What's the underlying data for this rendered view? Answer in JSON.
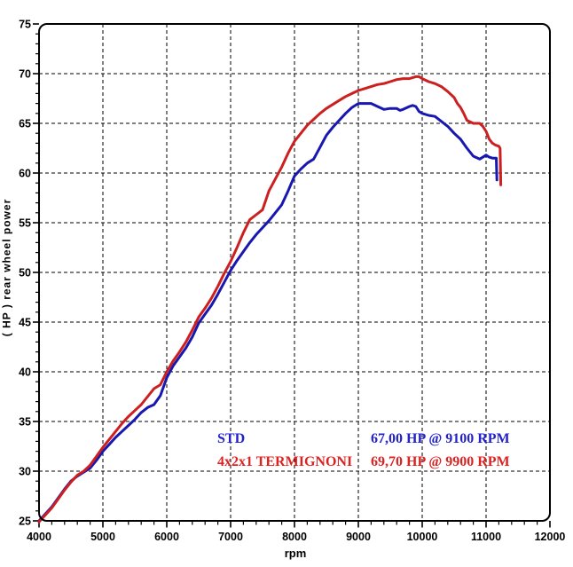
{
  "chart_data": {
    "type": "line",
    "title": "",
    "xlabel": "rpm",
    "ylabel": "( HP )  rear wheel power",
    "grid": "on",
    "x_axis": {
      "min": 4000,
      "max": 12000,
      "major_step": 1000,
      "minor_step": 200,
      "tick_labels": [
        "4000",
        "5000",
        "6000",
        "7000",
        "8000",
        "9000",
        "10000",
        "11000",
        "12000"
      ]
    },
    "y_axis": {
      "min": 25,
      "max": 75,
      "major_step": 5,
      "minor_step": 1,
      "tick_labels": [
        "25",
        "30",
        "35",
        "40",
        "45",
        "50",
        "55",
        "60",
        "65",
        "70",
        "75"
      ]
    },
    "series": [
      {
        "name": "STD",
        "color": "#1818b0",
        "peak": "67,00 HP @ 9100 RPM",
        "points": [
          [
            4000,
            25.0
          ],
          [
            4100,
            25.7
          ],
          [
            4200,
            26.4
          ],
          [
            4300,
            27.3
          ],
          [
            4400,
            28.2
          ],
          [
            4500,
            29.0
          ],
          [
            4600,
            29.5
          ],
          [
            4700,
            29.9
          ],
          [
            4800,
            30.3
          ],
          [
            4900,
            31.1
          ],
          [
            5000,
            32.0
          ],
          [
            5100,
            32.7
          ],
          [
            5200,
            33.4
          ],
          [
            5300,
            34.0
          ],
          [
            5400,
            34.6
          ],
          [
            5500,
            35.2
          ],
          [
            5600,
            35.9
          ],
          [
            5700,
            36.4
          ],
          [
            5800,
            36.7
          ],
          [
            5900,
            37.6
          ],
          [
            6000,
            39.4
          ],
          [
            6100,
            40.6
          ],
          [
            6200,
            41.5
          ],
          [
            6300,
            42.4
          ],
          [
            6400,
            43.5
          ],
          [
            6500,
            44.9
          ],
          [
            6600,
            45.8
          ],
          [
            6700,
            46.7
          ],
          [
            6800,
            47.8
          ],
          [
            6900,
            49.0
          ],
          [
            7000,
            50.2
          ],
          [
            7100,
            51.2
          ],
          [
            7200,
            52.1
          ],
          [
            7300,
            53.0
          ],
          [
            7400,
            53.8
          ],
          [
            7500,
            54.5
          ],
          [
            7600,
            55.2
          ],
          [
            7700,
            56.0
          ],
          [
            7800,
            56.8
          ],
          [
            7900,
            58.2
          ],
          [
            8000,
            59.7
          ],
          [
            8100,
            60.4
          ],
          [
            8200,
            61.0
          ],
          [
            8300,
            61.4
          ],
          [
            8400,
            62.6
          ],
          [
            8500,
            63.8
          ],
          [
            8600,
            64.6
          ],
          [
            8700,
            65.3
          ],
          [
            8800,
            66.0
          ],
          [
            8900,
            66.6
          ],
          [
            9000,
            67.0
          ],
          [
            9100,
            67.0
          ],
          [
            9200,
            67.0
          ],
          [
            9300,
            66.7
          ],
          [
            9400,
            66.4
          ],
          [
            9500,
            66.5
          ],
          [
            9600,
            66.5
          ],
          [
            9650,
            66.3
          ],
          [
            9700,
            66.4
          ],
          [
            9800,
            66.7
          ],
          [
            9850,
            66.8
          ],
          [
            9900,
            66.7
          ],
          [
            9950,
            66.2
          ],
          [
            10000,
            66.0
          ],
          [
            10100,
            65.8
          ],
          [
            10200,
            65.7
          ],
          [
            10300,
            65.2
          ],
          [
            10400,
            64.7
          ],
          [
            10500,
            64.0
          ],
          [
            10600,
            63.4
          ],
          [
            10700,
            62.5
          ],
          [
            10800,
            61.7
          ],
          [
            10900,
            61.4
          ],
          [
            11000,
            61.8
          ],
          [
            11050,
            61.6
          ],
          [
            11100,
            61.5
          ],
          [
            11160,
            61.5
          ],
          [
            11170,
            59.3
          ]
        ]
      },
      {
        "name": "4x2x1 TERMIGNONI",
        "color": "#cc2020",
        "peak": "69,70 HP @ 9900 RPM",
        "points": [
          [
            4000,
            24.9
          ],
          [
            4100,
            25.6
          ],
          [
            4200,
            26.3
          ],
          [
            4300,
            27.2
          ],
          [
            4400,
            28.1
          ],
          [
            4500,
            28.9
          ],
          [
            4600,
            29.6
          ],
          [
            4700,
            30.0
          ],
          [
            4800,
            30.6
          ],
          [
            4900,
            31.5
          ],
          [
            5000,
            32.4
          ],
          [
            5100,
            33.2
          ],
          [
            5200,
            34.0
          ],
          [
            5300,
            34.8
          ],
          [
            5400,
            35.5
          ],
          [
            5500,
            36.1
          ],
          [
            5600,
            36.7
          ],
          [
            5700,
            37.5
          ],
          [
            5800,
            38.3
          ],
          [
            5900,
            38.7
          ],
          [
            6000,
            40.0
          ],
          [
            6100,
            41.1
          ],
          [
            6200,
            42.0
          ],
          [
            6300,
            43.0
          ],
          [
            6400,
            44.2
          ],
          [
            6500,
            45.5
          ],
          [
            6600,
            46.4
          ],
          [
            6700,
            47.4
          ],
          [
            6800,
            48.6
          ],
          [
            6900,
            49.9
          ],
          [
            7000,
            51.1
          ],
          [
            7100,
            52.5
          ],
          [
            7200,
            54.0
          ],
          [
            7300,
            55.3
          ],
          [
            7400,
            55.8
          ],
          [
            7500,
            56.3
          ],
          [
            7600,
            58.2
          ],
          [
            7700,
            59.4
          ],
          [
            7800,
            60.6
          ],
          [
            7900,
            62.0
          ],
          [
            8000,
            63.2
          ],
          [
            8100,
            64.0
          ],
          [
            8200,
            64.8
          ],
          [
            8300,
            65.4
          ],
          [
            8400,
            66.0
          ],
          [
            8500,
            66.5
          ],
          [
            8600,
            66.9
          ],
          [
            8700,
            67.3
          ],
          [
            8800,
            67.7
          ],
          [
            8900,
            68.0
          ],
          [
            9000,
            68.3
          ],
          [
            9100,
            68.5
          ],
          [
            9200,
            68.7
          ],
          [
            9300,
            68.9
          ],
          [
            9400,
            69.0
          ],
          [
            9500,
            69.2
          ],
          [
            9600,
            69.4
          ],
          [
            9700,
            69.5
          ],
          [
            9800,
            69.5
          ],
          [
            9900,
            69.7
          ],
          [
            9950,
            69.7
          ],
          [
            10000,
            69.5
          ],
          [
            10100,
            69.2
          ],
          [
            10200,
            69.0
          ],
          [
            10300,
            68.7
          ],
          [
            10400,
            68.2
          ],
          [
            10500,
            67.6
          ],
          [
            10550,
            67.0
          ],
          [
            10600,
            66.6
          ],
          [
            10650,
            66.0
          ],
          [
            10700,
            65.3
          ],
          [
            10800,
            65.0
          ],
          [
            10900,
            65.0
          ],
          [
            10950,
            64.7
          ],
          [
            11000,
            64.2
          ],
          [
            11050,
            63.4
          ],
          [
            11100,
            63.0
          ],
          [
            11150,
            62.8
          ],
          [
            11200,
            62.7
          ],
          [
            11220,
            62.5
          ],
          [
            11230,
            58.8
          ]
        ]
      }
    ],
    "legend": [
      {
        "label": "STD",
        "value": "67,00 HP @ 9100 RPM",
        "color": "#2222cc"
      },
      {
        "label": "4x2x1 TERMIGNONI",
        "value": "69,70 HP @ 9900 RPM",
        "color": "#dd2222"
      }
    ]
  },
  "colors": {
    "background": "#ffffff",
    "frame": "#000000",
    "grid": "#000000"
  }
}
